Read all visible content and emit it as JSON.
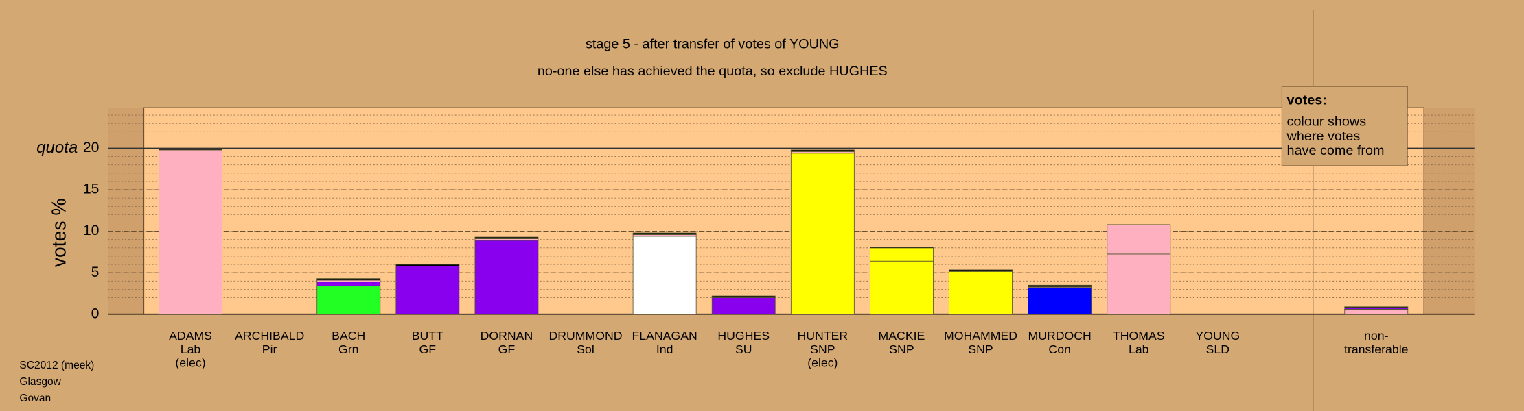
{
  "chart_data": {
    "type": "stacked_bar",
    "title": "stage 5 - after transfer of votes of YOUNG",
    "subtitle": "no-one else has achieved the quota, so exclude HUGHES",
    "ylabel": "votes %",
    "quota": 20,
    "quota_label": "quota",
    "categories": [
      [
        "ADAMS",
        "Lab",
        "(elec)"
      ],
      [
        "ARCHIBALD",
        "Pir"
      ],
      [
        "BACH",
        "Grn"
      ],
      [
        "BUTT",
        "GF"
      ],
      [
        "DORNAN",
        "GF"
      ],
      [
        "DRUMMOND",
        "Sol"
      ],
      [
        "FLANAGAN",
        "Ind"
      ],
      [
        "HUGHES",
        "SU"
      ],
      [
        "HUNTER",
        "SNP",
        "(elec)"
      ],
      [
        "MACKIE",
        "SNP"
      ],
      [
        "MOHAMMED",
        "SNP"
      ],
      [
        "MURDOCH",
        "Con"
      ],
      [
        "THOMAS",
        "Lab"
      ],
      [
        "YOUNG",
        "SLD"
      ],
      [
        "non-",
        "transferable"
      ]
    ],
    "series": [
      {
        "values": [
          19.8,
          0,
          3.4,
          5.8,
          8.9,
          0,
          9.4,
          2.0,
          19.4,
          6.4,
          5.15,
          3.2,
          7.25,
          0,
          0
        ],
        "colors": [
          "#ffb0c0",
          "#ffb0c0",
          "#22ff22",
          "#8800ee",
          "#8800ee",
          "#ffb0c0",
          "#ffffff",
          "#8800ee",
          "#ffff00",
          "#ffff00",
          "#ffff00",
          "#0000ff",
          "#ffb0c0",
          "#ffb0c0",
          "#ffb0c0"
        ]
      },
      {
        "values": [
          0,
          0,
          0.5,
          0,
          0.2,
          0,
          0.2,
          0,
          0.2,
          1.6,
          0,
          0.1,
          3.5,
          0,
          0.6
        ],
        "colors": [
          "#ffb0c0",
          "#ffb0c0",
          "#8800ee",
          "#ffb0c0",
          "#ffb0c0",
          "#ffb0c0",
          "#ffb0c0",
          "#ffb0c0",
          "#ffb0c0",
          "#ffff00",
          "#ffb0c0",
          "#ffb0c0",
          "#ffb0c0",
          "#ffb0c0",
          "#ffb0c0"
        ]
      },
      {
        "values": [
          0,
          0,
          0.2,
          0,
          0,
          0,
          0,
          0,
          0,
          0,
          0,
          0,
          0,
          0,
          0.2
        ],
        "colors": [
          "#ffb0c0",
          "#ffb0c0",
          "#ffb0c0",
          "#ffb0c0",
          "#ffb0c0",
          "#ffb0c0",
          "#ffb0c0",
          "#ffb0c0",
          "#ffb0c0",
          "#ffb0c0",
          "#ffb0c0",
          "#ffb0c0",
          "#ffb0c0",
          "#ffb0c0",
          "#8800ee"
        ]
      },
      {
        "values": [
          0.1,
          0,
          0.2,
          0.2,
          0.2,
          0,
          0.2,
          0.2,
          0.2,
          0.1,
          0.2,
          0.2,
          0.05,
          0,
          0.1
        ],
        "colors": [
          "#000000",
          "#000000",
          "#000000",
          "#000000",
          "#000000",
          "#000000",
          "#000000",
          "#000000",
          "#000000",
          "#000000",
          "#000000",
          "#000000",
          "#000000",
          "#000000",
          "#000000"
        ]
      }
    ],
    "ylim": [
      0,
      24.9
    ],
    "yticks": [
      0,
      5,
      10,
      15,
      20
    ],
    "minor_ytick_step": 1,
    "grid": true,
    "legend": {
      "title": "votes:",
      "lines": [
        "colour shows",
        "where votes",
        "have come from"
      ]
    },
    "footer": [
      "SC2012 (meek)",
      "Glasgow",
      "Govan"
    ]
  }
}
